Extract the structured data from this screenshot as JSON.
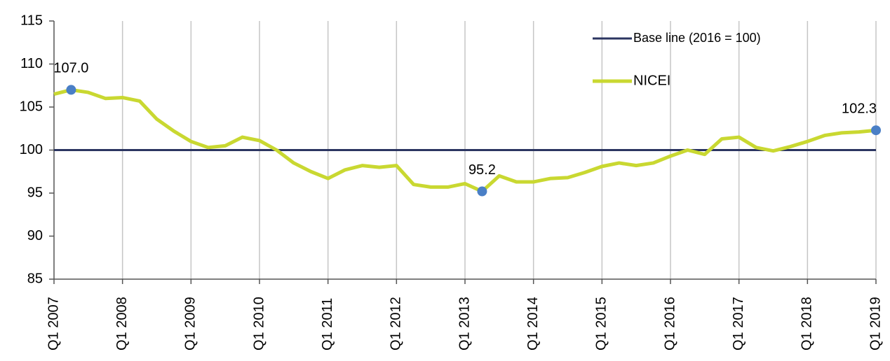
{
  "chart_data": {
    "type": "line",
    "categories": [
      "Q1 2007",
      null,
      null,
      null,
      "Q1 2008",
      null,
      null,
      null,
      "Q1 2009",
      null,
      null,
      null,
      "Q1 2010",
      null,
      null,
      null,
      "Q1 2011",
      null,
      null,
      null,
      "Q1 2012",
      null,
      null,
      null,
      "Q1 2013",
      null,
      null,
      null,
      "Q1 2014",
      null,
      null,
      null,
      "Q1 2015",
      null,
      null,
      null,
      "Q1 2016",
      null,
      null,
      null,
      "Q1 2017",
      null,
      null,
      null,
      "Q1 2018",
      null,
      null,
      null,
      "Q1 2019"
    ],
    "series": [
      {
        "name": "Base line (2016 = 100)",
        "color": "#2b3561",
        "values": [
          100,
          100,
          100,
          100,
          100,
          100,
          100,
          100,
          100,
          100,
          100,
          100,
          100,
          100,
          100,
          100,
          100,
          100,
          100,
          100,
          100,
          100,
          100,
          100,
          100,
          100,
          100,
          100,
          100,
          100,
          100,
          100,
          100,
          100,
          100,
          100,
          100,
          100,
          100,
          100,
          100,
          100,
          100,
          100,
          100,
          100,
          100,
          100,
          100
        ]
      },
      {
        "name": "NICEI",
        "color": "#c9d831",
        "marker_color": "#4a7fc6",
        "values": [
          106.5,
          107.0,
          106.7,
          106.0,
          106.1,
          105.7,
          103.6,
          102.2,
          101.0,
          100.3,
          100.5,
          101.5,
          101.1,
          100.0,
          98.5,
          97.5,
          96.7,
          97.7,
          98.2,
          98.0,
          98.2,
          96.0,
          95.7,
          95.7,
          96.1,
          95.2,
          97.0,
          96.3,
          96.3,
          96.7,
          96.8,
          97.4,
          98.1,
          98.5,
          98.2,
          98.5,
          99.3,
          100.0,
          99.5,
          101.3,
          101.5,
          100.3,
          99.9,
          100.4,
          101.0,
          101.7,
          102.0,
          102.1,
          102.3
        ],
        "value_labels": [
          null,
          "107.0",
          null,
          null,
          null,
          null,
          null,
          null,
          null,
          null,
          null,
          null,
          null,
          null,
          null,
          null,
          null,
          null,
          null,
          null,
          null,
          null,
          null,
          null,
          null,
          "95.2",
          null,
          null,
          null,
          null,
          null,
          null,
          null,
          null,
          null,
          null,
          null,
          null,
          null,
          null,
          null,
          null,
          null,
          null,
          null,
          null,
          null,
          null,
          "102.3"
        ]
      }
    ],
    "ylim": [
      85,
      115
    ],
    "yticks": [
      85,
      90,
      95,
      100,
      105,
      110,
      115
    ],
    "grid": true
  }
}
